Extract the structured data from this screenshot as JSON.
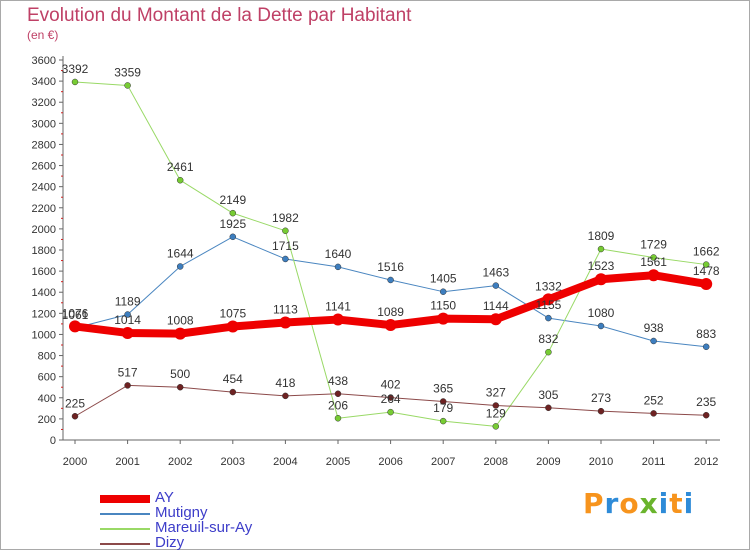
{
  "title": "Evolution du Montant de la Dette par Habitant",
  "subtitle": "(en €)",
  "logo": {
    "text": "Proxiti",
    "colors": [
      "#f7941d",
      "#2e8bd8",
      "#f7941d",
      "#6ab42d",
      "#2e8bd8",
      "#f7941d",
      "#2e8bd8"
    ]
  },
  "chart_data": {
    "type": "line",
    "x": [
      "2000",
      "2001",
      "2002",
      "2003",
      "2004",
      "2005",
      "2006",
      "2007",
      "2008",
      "2009",
      "2010",
      "2011",
      "2012"
    ],
    "ylim": [
      0,
      3600
    ],
    "yticks": [
      0,
      200,
      400,
      600,
      800,
      1000,
      1200,
      1400,
      1600,
      1800,
      2000,
      2200,
      2400,
      2600,
      2800,
      3000,
      3200,
      3400,
      3600
    ],
    "grid": false,
    "legend_position": "bottom-left",
    "series": [
      {
        "name": "Mutigny",
        "color": "#4a86c0",
        "marker": "#3d7ebf",
        "width": 1,
        "values": [
          1061,
          1189,
          1644,
          1925,
          1715,
          1640,
          1516,
          1405,
          1463,
          1155,
          1080,
          938,
          883
        ],
        "labels": [
          "1061",
          "1189",
          "1644",
          "1925",
          "1715",
          "1640",
          "1516",
          "1405",
          "1463",
          "1155",
          "1080",
          "938",
          "883"
        ]
      },
      {
        "name": "Mareuil-sur-Ay",
        "color": "#99d966",
        "marker": "#77cc33",
        "width": 1,
        "values": [
          3392,
          3359,
          2461,
          2149,
          1982,
          206,
          264,
          179,
          129,
          832,
          1809,
          1729,
          1662
        ],
        "labels": [
          "3392",
          "3359",
          "2461",
          "2149",
          "1982",
          "206",
          "264",
          "179",
          "129",
          "832",
          "1809",
          "1729",
          "1662"
        ]
      },
      {
        "name": "Dizy",
        "color": "#8c4a4a",
        "marker": "#6e2222",
        "width": 1,
        "values": [
          225,
          517,
          500,
          454,
          418,
          438,
          402,
          365,
          327,
          305,
          273,
          252,
          235
        ],
        "labels": [
          "225",
          "517",
          "500",
          "454",
          "418",
          "438",
          "402",
          "365",
          "327",
          "305",
          "273",
          "252",
          "235"
        ]
      },
      {
        "name": "AY",
        "color": "#ee0000",
        "marker": "#ee0000",
        "width": 8,
        "values": [
          1076,
          1014,
          1008,
          1075,
          1113,
          1141,
          1089,
          1150,
          1144,
          1332,
          1523,
          1561,
          1478
        ],
        "labels": [
          "1076",
          "1014",
          "1008",
          "1075",
          "1113",
          "1141",
          "1089",
          "1150",
          "1144",
          "1332",
          "1523",
          "1561",
          "1478"
        ]
      }
    ],
    "legend": [
      "AY",
      "Mutigny",
      "Mareuil-sur-Ay",
      "Dizy"
    ]
  }
}
